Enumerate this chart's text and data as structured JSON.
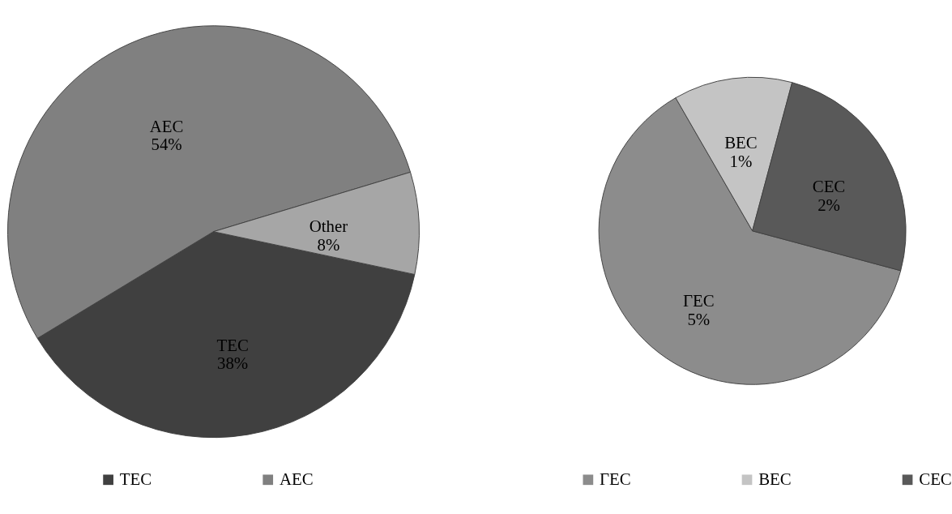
{
  "chart_data": [
    {
      "type": "pie",
      "categories": [
        "ТЕС",
        "АЕС",
        "Other"
      ],
      "values": [
        38,
        54,
        8
      ],
      "value_labels": [
        "38%",
        "54%",
        "8%"
      ],
      "colors": [
        "#404040",
        "#808080",
        "#a6a6a6"
      ],
      "legend": "bottom"
    },
    {
      "type": "pie",
      "categories": [
        "ГЕС",
        "ВЕС",
        "СЕС"
      ],
      "values": [
        5,
        1,
        2
      ],
      "value_labels": [
        "5%",
        "1%",
        "2%"
      ],
      "colors": [
        "#8c8c8c",
        "#c4c4c4",
        "#595959"
      ],
      "legend": "bottom"
    }
  ]
}
